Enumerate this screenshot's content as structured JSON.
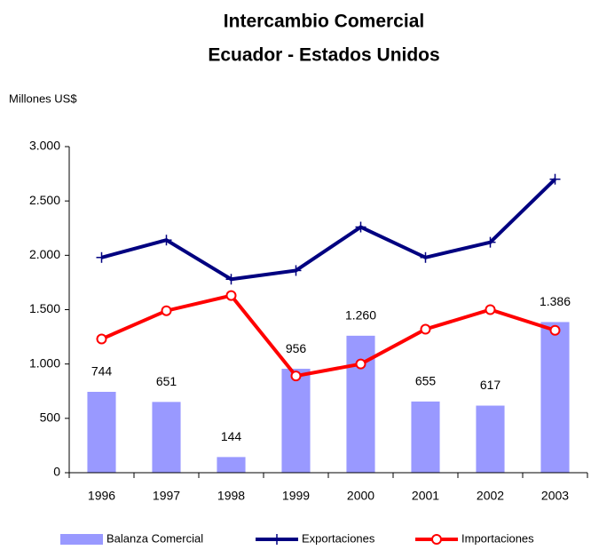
{
  "chart_data": {
    "type": "bar",
    "title": "Intercambio Comercial",
    "subtitle": "Ecuador - Estados Unidos",
    "y_label": "Millones US$",
    "categories": [
      "1996",
      "1997",
      "1998",
      "1999",
      "2000",
      "2001",
      "2002",
      "2003"
    ],
    "series": [
      {
        "name": "Balanza Comercial",
        "type": "bar",
        "color": "#9999ff",
        "values": [
          744,
          651,
          144,
          956,
          1260,
          655,
          617,
          1386
        ],
        "value_labels": [
          "744",
          "651",
          "144",
          "956",
          "1.260",
          "655",
          "617",
          "1.386"
        ]
      },
      {
        "name": "Exportaciones",
        "type": "line",
        "marker": "plus",
        "color": "#000080",
        "values": [
          1980,
          2140,
          1780,
          1860,
          2260,
          1980,
          2120,
          2700
        ]
      },
      {
        "name": "Importaciones",
        "type": "line",
        "marker": "circle",
        "color": "#ff0000",
        "values": [
          1230,
          1490,
          1630,
          890,
          1000,
          1320,
          1500,
          1310
        ]
      }
    ],
    "ylim": [
      0,
      3000
    ],
    "yticks": [
      0,
      500,
      {
        "value": 1000,
        "label": "1.000"
      },
      {
        "value": 1500,
        "label": "1.500"
      },
      {
        "value": 2000,
        "label": "2.000"
      },
      {
        "value": 2500,
        "label": "2.500"
      },
      {
        "value": 3000,
        "label": "3.000"
      }
    ],
    "grid": false,
    "legend": "bottom"
  }
}
